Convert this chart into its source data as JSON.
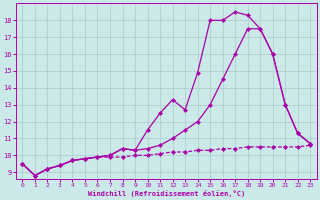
{
  "background_color": "#cbe9e9",
  "grid_color": "#aacccc",
  "line_color": "#aa00aa",
  "markersize": 2.5,
  "linewidth": 0.9,
  "xlim": [
    -0.5,
    23.5
  ],
  "ylim": [
    8.6,
    19.0
  ],
  "xticks": [
    0,
    1,
    2,
    3,
    4,
    5,
    6,
    7,
    8,
    9,
    10,
    11,
    12,
    13,
    14,
    15,
    16,
    17,
    18,
    19,
    20,
    21,
    22,
    23
  ],
  "yticks": [
    9,
    10,
    11,
    12,
    13,
    14,
    15,
    16,
    17,
    18
  ],
  "xlabel": "Windchill (Refroidissement éolien,°C)",
  "line1_x": [
    0,
    1,
    2,
    3,
    4,
    5,
    6,
    7,
    8,
    9,
    10,
    11,
    12,
    13,
    14,
    15,
    16,
    17,
    18,
    19,
    20,
    21,
    22,
    23
  ],
  "line1_y": [
    9.5,
    8.8,
    9.2,
    9.4,
    9.7,
    9.8,
    9.9,
    10.0,
    10.4,
    10.3,
    11.5,
    12.5,
    13.3,
    12.7,
    14.9,
    18.0,
    18.0,
    18.5,
    18.3,
    17.5,
    16.0,
    13.0,
    11.3,
    10.7
  ],
  "line2_x": [
    0,
    1,
    2,
    3,
    4,
    5,
    6,
    7,
    8,
    9,
    10,
    11,
    12,
    13,
    14,
    15,
    16,
    17,
    18,
    19,
    20,
    21,
    22,
    23
  ],
  "line2_y": [
    9.5,
    8.8,
    9.2,
    9.4,
    9.7,
    9.8,
    9.9,
    10.0,
    10.4,
    10.3,
    10.4,
    10.6,
    11.0,
    11.5,
    12.0,
    13.0,
    14.5,
    16.0,
    17.5,
    17.5,
    16.0,
    13.0,
    11.3,
    10.7
  ],
  "line3_x": [
    0,
    1,
    2,
    3,
    4,
    5,
    6,
    7,
    8,
    9,
    10,
    11,
    12,
    13,
    14,
    15,
    16,
    17,
    18,
    19,
    20,
    21,
    22,
    23
  ],
  "line3_y": [
    9.5,
    8.8,
    9.2,
    9.4,
    9.7,
    9.8,
    9.9,
    9.9,
    9.9,
    10.0,
    10.0,
    10.1,
    10.2,
    10.2,
    10.3,
    10.3,
    10.4,
    10.4,
    10.5,
    10.5,
    10.5,
    10.5,
    10.5,
    10.6
  ]
}
